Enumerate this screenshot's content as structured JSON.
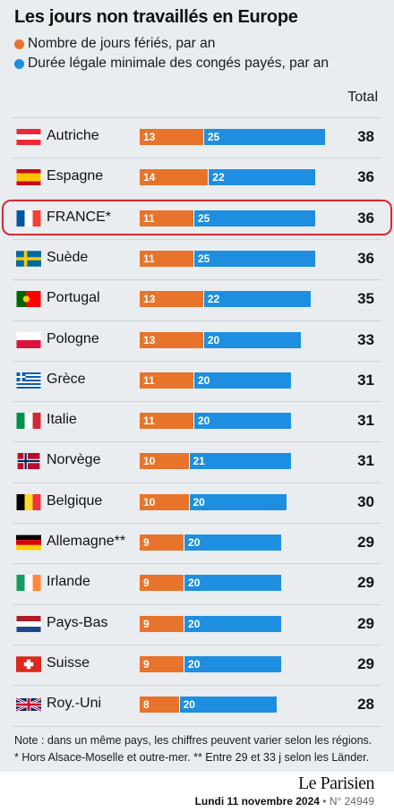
{
  "title": "Les jours non travaillés en Europe",
  "legend": [
    {
      "label": "Nombre de jours fériés, par an",
      "color": "#e8732a"
    },
    {
      "label": "Durée légale minimale des congés payés, par an",
      "color": "#1e8fe0"
    }
  ],
  "total_header": "Total",
  "chart_data": {
    "type": "bar",
    "stacked": true,
    "orientation": "horizontal",
    "categories": [
      "Autriche",
      "Espagne",
      "FRANCE*",
      "Suède",
      "Portugal",
      "Pologne",
      "Grèce",
      "Italie",
      "Norvège",
      "Belgique",
      "Allemagne**",
      "Irlande",
      "Pays-Bas",
      "Suisse",
      "Roy.-Uni"
    ],
    "series": [
      {
        "name": "Nombre de jours fériés, par an",
        "color": "#e8732a",
        "values": [
          13,
          14,
          11,
          11,
          13,
          13,
          11,
          11,
          10,
          10,
          9,
          9,
          9,
          9,
          8
        ]
      },
      {
        "name": "Durée légale minimale des congés payés, par an",
        "color": "#1e8fe0",
        "values": [
          25,
          22,
          25,
          25,
          22,
          20,
          20,
          20,
          21,
          20,
          20,
          20,
          20,
          20,
          20
        ]
      }
    ],
    "totals": [
      38,
      36,
      36,
      36,
      35,
      33,
      31,
      31,
      31,
      30,
      29,
      29,
      29,
      29,
      28
    ],
    "highlighted": "FRANCE*"
  },
  "flags": [
    "austria-flag-icon",
    "spain-flag-icon",
    "france-flag-icon",
    "sweden-flag-icon",
    "portugal-flag-icon",
    "poland-flag-icon",
    "greece-flag-icon",
    "italy-flag-icon",
    "norway-flag-icon",
    "belgium-flag-icon",
    "germany-flag-icon",
    "ireland-flag-icon",
    "netherlands-flag-icon",
    "switzerland-flag-icon",
    "uk-flag-icon"
  ],
  "notes": [
    "Note : dans un même pays, les chiffres peuvent varier selon les régions.",
    "* Hors Alsace-Moselle et outre-mer. ** Entre 29 et 33 j selon les Länder."
  ],
  "footer": {
    "brand": "Le Parisien",
    "date": "Lundi 11 novembre 2024",
    "issue": "• N° 24949"
  }
}
